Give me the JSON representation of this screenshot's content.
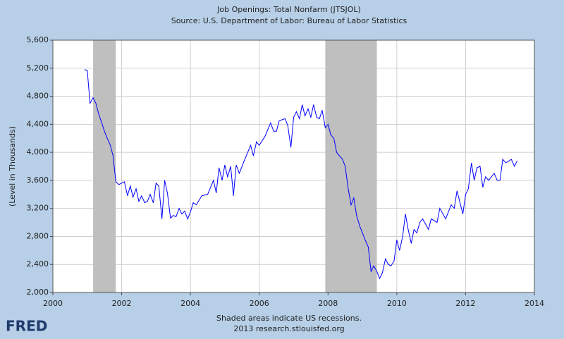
{
  "chart_data": {
    "type": "line",
    "title": "Job Openings: Total Nonfarm (JTSJOL)",
    "subtitle": "Source: U.S. Department of Labor: Bureau of Labor Statistics",
    "y_label": "(Level in Thousands)",
    "note": "Shaded areas indicate US recessions.",
    "credit": "2013 research.stlouisfed.org",
    "logo": "FRED",
    "recessions": [
      [
        2001.17,
        2001.83
      ],
      [
        2007.92,
        2009.42
      ]
    ],
    "recession_color": "#bfbfbf",
    "xlim": [
      2000,
      2014
    ],
    "xticks": [
      2000,
      2002,
      2004,
      2006,
      2008,
      2010,
      2012,
      2014
    ],
    "ylim": [
      2000,
      5600
    ],
    "yticks": [
      {
        "value": 2000,
        "label": "2,000"
      },
      {
        "value": 2400,
        "label": "2,400"
      },
      {
        "value": 2800,
        "label": "2,800"
      },
      {
        "value": 3200,
        "label": "3,200"
      },
      {
        "value": 3600,
        "label": "3,600"
      },
      {
        "value": 4000,
        "label": "4,000"
      },
      {
        "value": 4400,
        "label": "4,400"
      },
      {
        "value": 4800,
        "label": "4,800"
      },
      {
        "value": 5200,
        "label": "5,200"
      },
      {
        "value": 5600,
        "label": "5,600"
      }
    ],
    "grid": true,
    "series": [
      {
        "name": "JTSJOL",
        "color": "#0000ff",
        "x": [
          2000.92,
          2001.0,
          2001.08,
          2001.17,
          2001.25,
          2001.33,
          2001.42,
          2001.5,
          2001.58,
          2001.67,
          2001.75,
          2001.83,
          2001.92,
          2002.0,
          2002.08,
          2002.17,
          2002.25,
          2002.33,
          2002.42,
          2002.5,
          2002.58,
          2002.67,
          2002.75,
          2002.83,
          2002.92,
          2003.0,
          2003.08,
          2003.17,
          2003.25,
          2003.33,
          2003.42,
          2003.5,
          2003.58,
          2003.67,
          2003.75,
          2003.83,
          2003.92,
          2004.0,
          2004.08,
          2004.17,
          2004.33,
          2004.5,
          2004.67,
          2004.75,
          2004.83,
          2004.92,
          2005.0,
          2005.08,
          2005.17,
          2005.25,
          2005.33,
          2005.42,
          2005.58,
          2005.75,
          2005.83,
          2005.92,
          2006.0,
          2006.17,
          2006.33,
          2006.42,
          2006.5,
          2006.58,
          2006.75,
          2006.83,
          2006.92,
          2007.0,
          2007.08,
          2007.17,
          2007.25,
          2007.33,
          2007.42,
          2007.5,
          2007.58,
          2007.67,
          2007.75,
          2007.83,
          2007.92,
          2008.0,
          2008.08,
          2008.17,
          2008.25,
          2008.33,
          2008.42,
          2008.5,
          2008.58,
          2008.67,
          2008.75,
          2008.83,
          2008.92,
          2009.0,
          2009.08,
          2009.17,
          2009.25,
          2009.33,
          2009.42,
          2009.5,
          2009.58,
          2009.67,
          2009.75,
          2009.83,
          2009.92,
          2010.0,
          2010.08,
          2010.17,
          2010.25,
          2010.33,
          2010.42,
          2010.5,
          2010.58,
          2010.67,
          2010.75,
          2010.83,
          2010.92,
          2011.0,
          2011.17,
          2011.25,
          2011.42,
          2011.58,
          2011.67,
          2011.75,
          2011.92,
          2012.0,
          2012.08,
          2012.17,
          2012.25,
          2012.33,
          2012.42,
          2012.5,
          2012.58,
          2012.67,
          2012.75,
          2012.83,
          2012.92,
          2013.0,
          2013.08,
          2013.17,
          2013.33,
          2013.42,
          2013.5
        ],
        "values": [
          5180,
          5170,
          4700,
          4780,
          4700,
          4550,
          4420,
          4300,
          4200,
          4100,
          3950,
          3580,
          3540,
          3560,
          3580,
          3380,
          3520,
          3360,
          3480,
          3300,
          3380,
          3280,
          3300,
          3400,
          3280,
          3560,
          3520,
          3050,
          3600,
          3420,
          3060,
          3100,
          3080,
          3200,
          3120,
          3160,
          3050,
          3150,
          3280,
          3250,
          3380,
          3400,
          3600,
          3420,
          3780,
          3600,
          3820,
          3650,
          3800,
          3380,
          3820,
          3700,
          3900,
          4100,
          3950,
          4150,
          4100,
          4230,
          4420,
          4300,
          4300,
          4450,
          4480,
          4380,
          4070,
          4500,
          4580,
          4480,
          4680,
          4520,
          4620,
          4500,
          4680,
          4500,
          4480,
          4600,
          4350,
          4400,
          4250,
          4200,
          4000,
          3950,
          3900,
          3800,
          3500,
          3250,
          3350,
          3100,
          2950,
          2850,
          2750,
          2650,
          2300,
          2380,
          2300,
          2200,
          2280,
          2480,
          2400,
          2380,
          2450,
          2750,
          2600,
          2800,
          3120,
          2900,
          2700,
          2900,
          2850,
          3000,
          3050,
          2980,
          2900,
          3050,
          3000,
          3200,
          3050,
          3250,
          3200,
          3450,
          3120,
          3400,
          3480,
          3850,
          3600,
          3780,
          3800,
          3500,
          3650,
          3600,
          3650,
          3700,
          3600,
          3600,
          3900,
          3850,
          3900,
          3800,
          3880
        ]
      }
    ]
  }
}
